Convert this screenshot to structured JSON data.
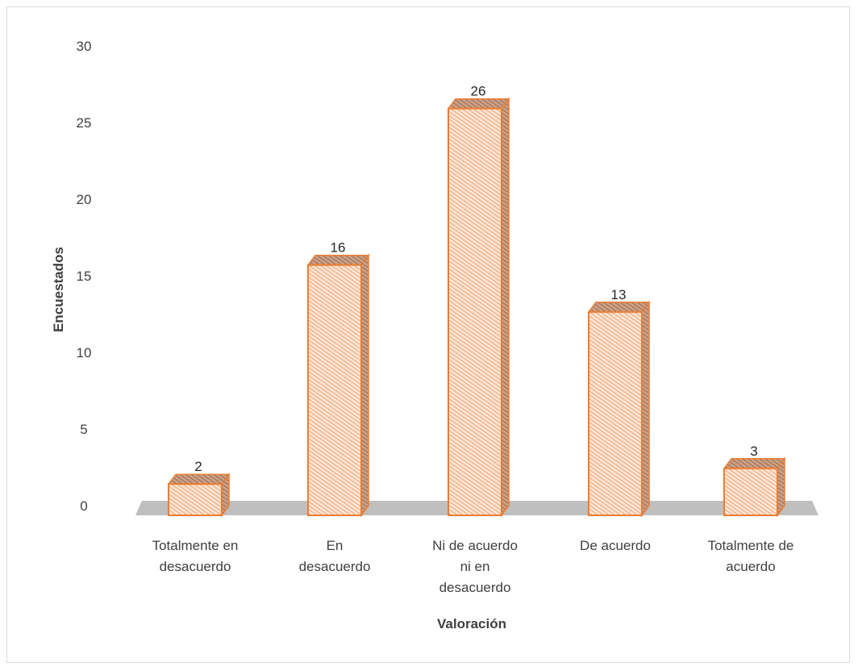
{
  "chart_data": {
    "type": "bar",
    "categories": [
      [
        "Totalmente en",
        "desacuerdo"
      ],
      [
        "En",
        "desacuerdo"
      ],
      [
        "Ni de acuerdo",
        "ni en",
        "desacuerdo"
      ],
      [
        "De acuerdo"
      ],
      [
        "Totalmente de",
        "acuerdo"
      ]
    ],
    "values": [
      2,
      16,
      26,
      13,
      3
    ],
    "data_labels": [
      "2",
      "16",
      "26",
      "13",
      "3"
    ],
    "xlabel": "Valoración",
    "ylabel": "Encuestados",
    "ylim": [
      0,
      30
    ],
    "yticks": [
      0,
      5,
      10,
      15,
      20,
      25,
      30
    ],
    "grid": false,
    "style": "3d-column",
    "colors": {
      "bar_fill": "#fbe5d6",
      "bar_hatch": "#ed7d31",
      "bar_border": "#ed7d31",
      "floor": "#bfbfbf"
    }
  }
}
